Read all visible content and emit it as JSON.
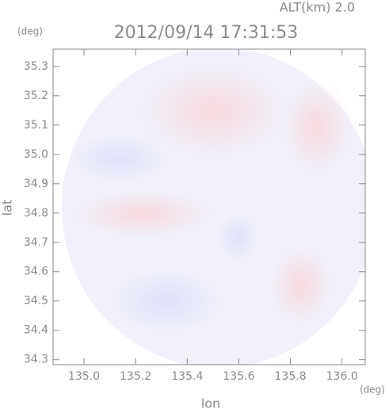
{
  "chart_data": {
    "type": "image",
    "title": "2012/09/14 17:31:53",
    "annotation": "ALT(km) 2.0",
    "x_label": "lon",
    "x_unit": "(deg)",
    "y_label": "lat",
    "y_unit": "(deg)",
    "xlim": [
      134.88,
      136.09
    ],
    "ylim": [
      34.283,
      35.359
    ],
    "xticks": [
      {
        "value": 135.0,
        "label": "135.0"
      },
      135.2,
      135.4,
      135.6,
      135.8,
      {
        "value": 136.0,
        "label": "136.0"
      }
    ],
    "yticks": [
      34.3,
      34.4,
      34.5,
      34.6,
      34.7,
      34.8,
      34.9,
      {
        "value": 35.0,
        "label": "35.0"
      },
      35.1,
      35.2,
      35.3
    ]
  }
}
